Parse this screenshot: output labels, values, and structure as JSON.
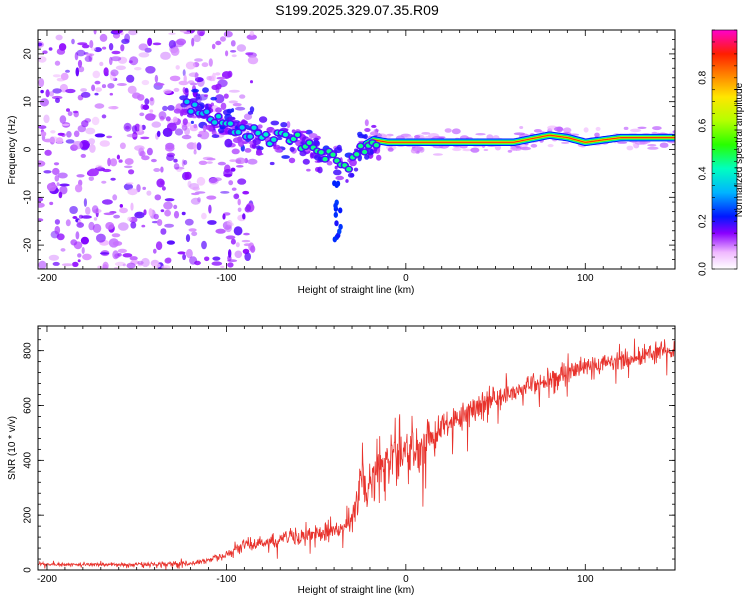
{
  "title": "S199.2025.329.07.35.R09",
  "chart_data": [
    {
      "type": "heatmap",
      "name": "spectrogram",
      "xlabel": "Height of straight line (km)",
      "ylabel": "Frequency (Hz)",
      "xlim": [
        -205,
        150
      ],
      "ylim": [
        -25,
        25
      ],
      "x_ticks": [
        -200,
        -100,
        0,
        100
      ],
      "y_ticks": [
        -20,
        -10,
        0,
        10,
        20
      ],
      "colorbar": {
        "label": "Normalized spectral amplitude",
        "range": [
          0,
          1
        ],
        "ticks": [
          0.0,
          0.2,
          0.4,
          0.6,
          0.8
        ],
        "tick_labels": [
          "0.0",
          "0.2",
          "0.4",
          "0.6",
          "0.8"
        ]
      },
      "ridge": {
        "x": [
          -120,
          -110,
          -100,
          -90,
          -80,
          -70,
          -60,
          -50,
          -40,
          -33,
          -25,
          -18,
          -10,
          0,
          20,
          40,
          60,
          80,
          90,
          100,
          120,
          150
        ],
        "y": [
          9,
          7,
          5,
          4,
          3,
          2.5,
          2,
          0,
          -2,
          -4.5,
          0.5,
          2,
          1.5,
          1.5,
          1.5,
          1.5,
          1.5,
          3,
          2.5,
          1.5,
          2.5,
          2.5
        ],
        "amplitude": [
          0.35,
          0.35,
          0.4,
          0.35,
          0.4,
          0.4,
          0.45,
          0.5,
          0.5,
          0.55,
          0.5,
          0.6,
          0.7,
          0.8,
          0.85,
          0.85,
          0.85,
          0.9,
          0.85,
          0.9,
          0.9,
          0.95
        ]
      },
      "noise_region_km": [
        -205,
        -100
      ]
    },
    {
      "type": "line",
      "name": "snr",
      "xlabel": "Height of straight line (km)",
      "ylabel": "SNR (10 * v/v)",
      "xlim": [
        -205,
        150
      ],
      "ylim": [
        0,
        890
      ],
      "x_ticks": [
        -200,
        -100,
        0,
        100
      ],
      "y_ticks": [
        0,
        200,
        400,
        600,
        800
      ],
      "color": "#e8322c",
      "trend": {
        "x": [
          -205,
          -180,
          -150,
          -120,
          -110,
          -100,
          -90,
          -80,
          -70,
          -60,
          -50,
          -40,
          -35,
          -28,
          -25,
          -20,
          -15,
          -10,
          0,
          10,
          20,
          30,
          40,
          60,
          80,
          100,
          120,
          140,
          150
        ],
        "y": [
          20,
          20,
          20,
          25,
          35,
          60,
          90,
          100,
          110,
          120,
          130,
          150,
          140,
          200,
          320,
          330,
          370,
          400,
          420,
          460,
          520,
          560,
          600,
          650,
          700,
          740,
          770,
          790,
          800
        ]
      },
      "spread": {
        "x": [
          -205,
          -110,
          -100,
          -40,
          -30,
          -25,
          -20,
          0,
          20,
          60,
          150
        ],
        "y": [
          6,
          10,
          20,
          45,
          70,
          110,
          120,
          100,
          70,
          45,
          40
        ]
      }
    }
  ]
}
